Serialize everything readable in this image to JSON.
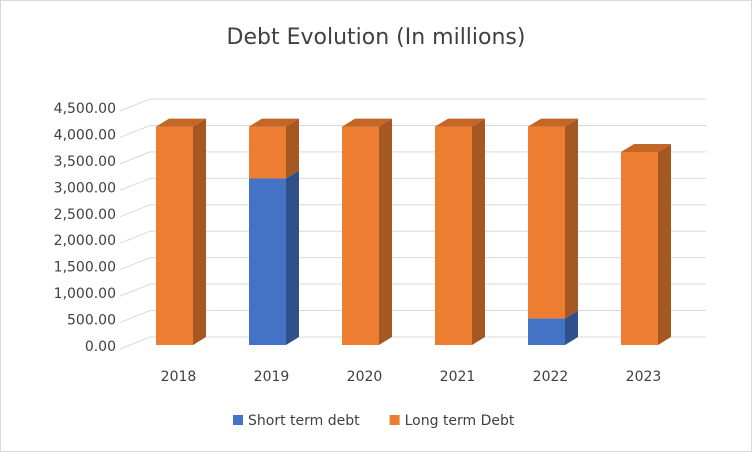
{
  "chart_data": {
    "type": "bar3d-stacked",
    "title": "Debt Evolution (In millions)",
    "categories": [
      "2018",
      "2019",
      "2020",
      "2021",
      "2022",
      "2023"
    ],
    "series": [
      {
        "name": "Short term debt",
        "color": "#4472c4",
        "values": [
          0,
          3150,
          0,
          0,
          500,
          0
        ]
      },
      {
        "name": "Long term Debt",
        "color": "#ed7d31",
        "values": [
          4130,
          980,
          4130,
          4130,
          3630,
          3650
        ]
      }
    ],
    "ylim": [
      0,
      4500
    ],
    "yticks": [
      {
        "value": 0,
        "label": "0.00"
      },
      {
        "value": 500,
        "label": "500.00"
      },
      {
        "value": 1000,
        "label": "1,000.00"
      },
      {
        "value": 1500,
        "label": "1,500.00"
      },
      {
        "value": 2000,
        "label": "2,000.00"
      },
      {
        "value": 2500,
        "label": "2,500.00"
      },
      {
        "value": 3000,
        "label": "3,000.00"
      },
      {
        "value": 3500,
        "label": "3,500.00"
      },
      {
        "value": 4000,
        "label": "4,000.00"
      },
      {
        "value": 4500,
        "label": "4,500.00"
      }
    ],
    "grid": true,
    "legend": "bottom"
  }
}
